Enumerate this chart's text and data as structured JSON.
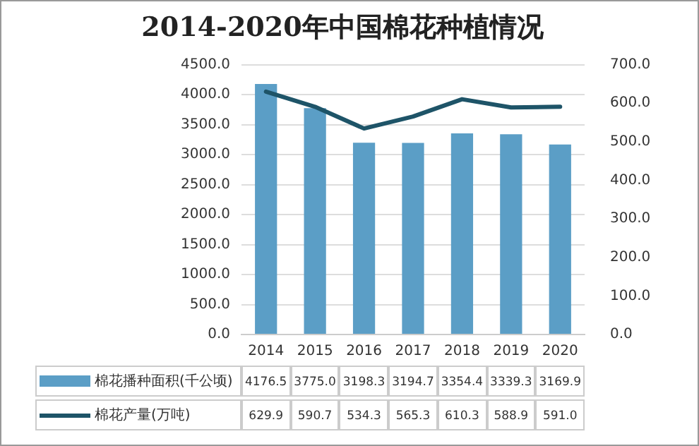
{
  "chart_data": {
    "type": "bar",
    "title": "2014-2020年中国棉花种植情况",
    "categories": [
      "2014",
      "2015",
      "2016",
      "2017",
      "2018",
      "2019",
      "2020"
    ],
    "series": [
      {
        "name": "棉花播种面积(千公顷)",
        "color": "#5b9ec6",
        "values": [
          4176.5,
          3775.0,
          3198.3,
          3194.7,
          3354.4,
          3339.3,
          3169.9
        ],
        "value_labels": [
          "4176.5",
          "3775.0",
          "3198.3",
          "3194.7",
          "3354.4",
          "3339.3",
          "3169.9"
        ]
      },
      {
        "name": "棉花产量(万吨)",
        "type": "line",
        "axis": "y2",
        "color": "#1e5468",
        "values": [
          629.9,
          590.7,
          534.3,
          565.3,
          610.3,
          588.9,
          591.0
        ],
        "value_labels": [
          "629.9",
          "590.7",
          "534.3",
          "565.3",
          "610.3",
          "588.9",
          "591.0"
        ]
      }
    ],
    "ylim": [
      0,
      4500
    ],
    "yticks": [
      {
        "value": 0,
        "label": "0.0"
      },
      {
        "value": 500,
        "label": "500.0"
      },
      {
        "value": 1000,
        "label": "1000.0"
      },
      {
        "value": 1500,
        "label": "1500.0"
      },
      {
        "value": 2000,
        "label": "2000.0"
      },
      {
        "value": 2500,
        "label": "2500.0"
      },
      {
        "value": 3000,
        "label": "3000.0"
      },
      {
        "value": 3500,
        "label": "3500.0"
      },
      {
        "value": 4000,
        "label": "4000.0"
      },
      {
        "value": 4500,
        "label": "4500.0"
      }
    ],
    "y2lim": [
      0,
      700
    ],
    "y2ticks": [
      {
        "value": 0,
        "label": "0.0"
      },
      {
        "value": 100,
        "label": "100.0"
      },
      {
        "value": 200,
        "label": "200.0"
      },
      {
        "value": 300,
        "label": "300.0"
      },
      {
        "value": 400,
        "label": "400.0"
      },
      {
        "value": 500,
        "label": "500.0"
      },
      {
        "value": 600,
        "label": "600.0"
      },
      {
        "value": 700,
        "label": "700.0"
      }
    ],
    "grid": "y",
    "legend": "bottom",
    "marker": "none",
    "line_style": "solid"
  }
}
